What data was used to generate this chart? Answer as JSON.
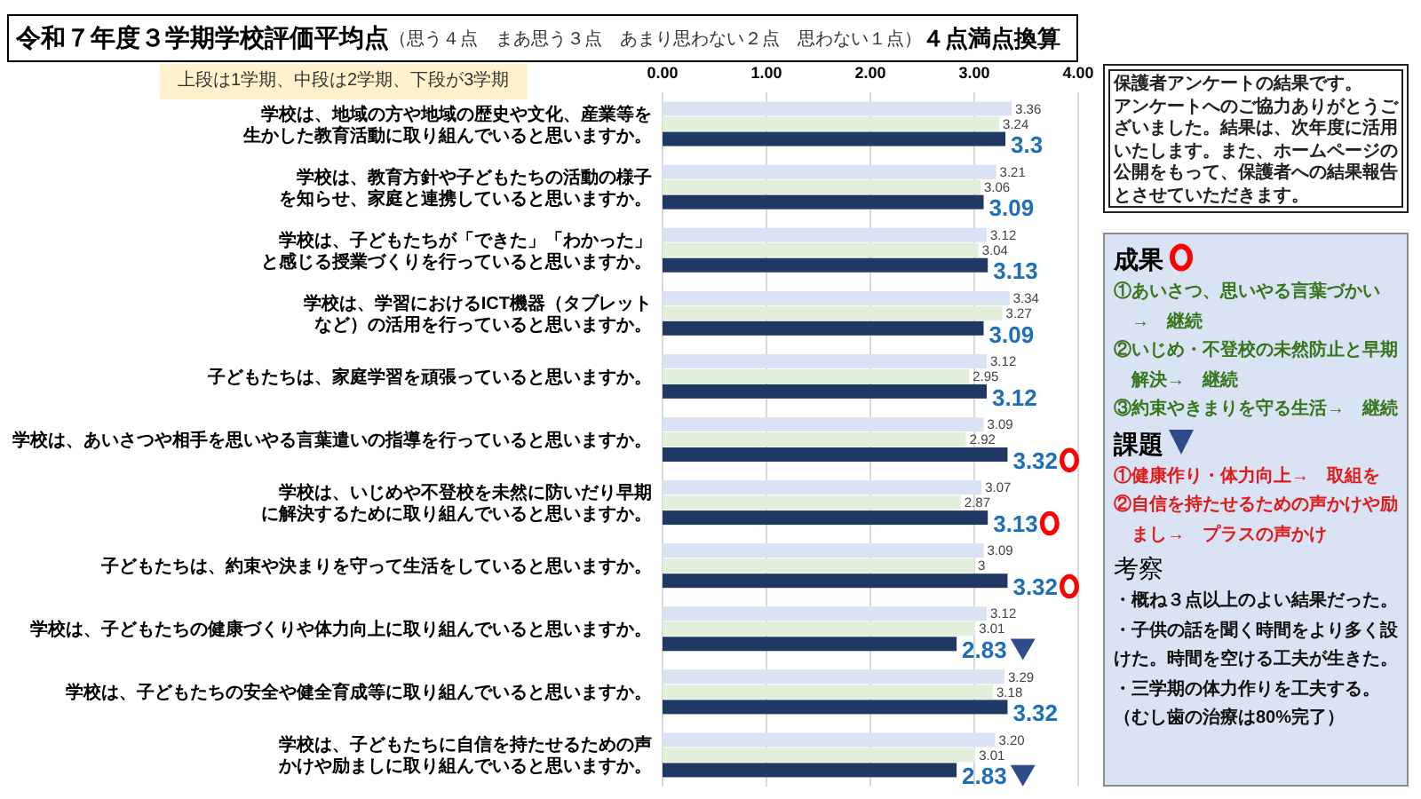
{
  "chart_data": {
    "type": "bar",
    "orientation": "horizontal",
    "title": "令和７年度３学期学校評価平均点",
    "subtitle": "（思う４点　まあ思う３点　あまり思わない２点　思わない１点）",
    "categories": [
      "学校は、地域の方や地域の歴史や文化、産業等を生かした教育活動に取り組んでいると思いますか。",
      "学校は、教育方針や子どもたちの活動の様子を知らせ、家庭と連携していると思いますか。",
      "学校は、子どもたちが「できた」「わかった」と感じる授業づくりを行っていると思いますか。",
      "学校は、学習におけるICT機器（タブレットなど）の活用を行っていると思いますか。",
      "子どもたちは、家庭学習を頑張っていると思いますか。",
      "学校は、あいさつや相手を思いやる言葉遣いの指導を行っていると思いますか。",
      "学校は、いじめや不登校を未然に防いだり早期に解決するために取り組んでいると思いますか。",
      "子どもたちは、約束や決まりを守って生活をしていると思いますか。",
      "学校は、子どもたちの健康づくりや体力向上に取り組んでいると思いますか。",
      "学校は、子どもたちの安全や健全育成等に取り組んでいると思いますか。",
      "学校は、子どもたちに自信を持たせるための声かけや励ましに取り組んでいると思いますか。"
    ],
    "series": [
      {
        "color": "#dae3f3",
        "values": [
          3.36,
          3.21,
          3.12,
          3.34,
          3.12,
          3.09,
          3.07,
          3.09,
          3.12,
          3.29,
          3.2
        ],
        "value_labels": [
          "3.36",
          "3.21",
          "3.12",
          "3.34",
          "3.12",
          "3.09",
          "3.07",
          "3.09",
          "3.12",
          "3.29",
          "3.20"
        ]
      },
      {
        "color": "#e2efda",
        "values": [
          3.24,
          3.06,
          3.04,
          3.27,
          2.95,
          2.92,
          2.87,
          3,
          3.01,
          3.18,
          3.01
        ],
        "value_labels": [
          "3.24",
          "3.06",
          "3.04",
          "3.27",
          "2.95",
          "2.92",
          "2.87",
          "3",
          "3.01",
          "3.18",
          "3.01"
        ]
      },
      {
        "color": "#203864",
        "values": [
          3.3,
          3.09,
          3.13,
          3.09,
          3.12,
          3.32,
          3.13,
          3.32,
          2.83,
          3.32,
          2.83
        ],
        "value_labels": [
          "3.3",
          "3.09",
          "3.13",
          "3.09",
          "3.12",
          "3.32",
          "3.13",
          "3.32",
          "2.83",
          "3.32",
          "2.83"
        ]
      }
    ],
    "xlim": [
      0,
      4
    ],
    "xticks": [
      {
        "value": 0,
        "label": "0.00"
      },
      {
        "value": 1,
        "label": "1.00"
      },
      {
        "value": 2,
        "label": "2.00"
      },
      {
        "value": 3,
        "label": "3.00"
      },
      {
        "value": 4,
        "label": "4.00"
      }
    ],
    "grid": "x",
    "annotations": [
      "４点満点換算",
      "上段は1学期、中段は2学期、下段が3学期",
      "保護者アンケートの結果です。",
      "アンケートへのご協力ありがとうございました。結果は、次年度に活用いたします。また、ホームページの公開をもって、保護者への結果報告とさせていただきます。",
      "成果",
      "①あいさつ、思いやる言葉づかい　→　継続",
      "②いじめ・不登校の未然防止と早期解決→　継続",
      "③約束やきまりを守る生活→　継続",
      "課題",
      "①健康作り・体力向上→　取組を",
      "②自信を持たせるための声かけや励まし→　プラスの声かけ",
      "考察",
      "・概ね３点以上のよい結果だった。",
      "・子供の話を聞く時間をより多く設けた。時間を空ける工夫が生きた。",
      "・三学期の体力作りを工夫する。",
      "（むし歯の治療は80%完了）"
    ]
  }
}
